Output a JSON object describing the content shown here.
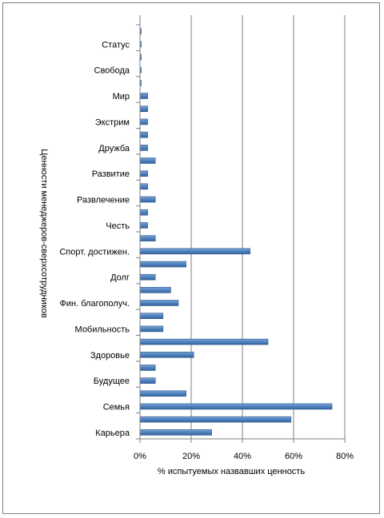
{
  "chart_data": {
    "type": "bar",
    "orientation": "horizontal",
    "title": "",
    "xlabel": "% испытуемых назвавших ценность",
    "ylabel": "Ценности менеджеров-сверхсотрудников",
    "xlim": [
      0,
      80
    ],
    "xticks": [
      "0%",
      "20%",
      "40%",
      "60%",
      "80%"
    ],
    "grid": true,
    "legend": "none",
    "bar_color": "#4f81bd",
    "categories": [
      "Карьера",
      "",
      "Семья",
      "",
      "Будущее",
      "",
      "Здоровье",
      "",
      "Мобильность",
      "",
      "Фин. благополуч.",
      "",
      "Долг",
      "",
      "Спорт. достижен.",
      "",
      "Честь",
      "",
      "Развлечение",
      "",
      "Развитие",
      "",
      "Дружба",
      "",
      "Экстрим",
      "",
      "Мир",
      "",
      "Свобода",
      "",
      "Статус",
      ""
    ],
    "values": [
      28,
      59,
      75,
      18,
      6,
      6,
      21,
      50,
      9,
      9,
      15,
      12,
      6,
      18,
      43,
      6,
      3,
      3,
      6,
      3,
      3,
      6,
      3,
      3,
      3,
      3,
      3,
      0,
      0,
      0,
      0,
      0
    ]
  }
}
